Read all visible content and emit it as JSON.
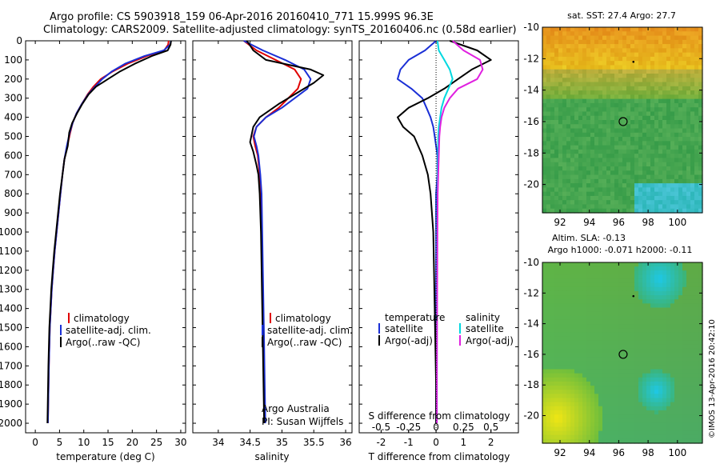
{
  "header": {
    "line1": "Argo profile: CS 5903918_159 06-Apr-2016 20160410_771 15.999S 96.3E",
    "line2": "Climatology: CARS2009. Satellite-adjusted climatology: synTS_20160406.nc (0.58d earlier)"
  },
  "colors": {
    "climatology": "#e00000",
    "satellite": "#1a2fd6",
    "argo": "#000000",
    "sal_satellite": "#00d8e0",
    "sal_argo": "#e020e0"
  },
  "depth_axis": {
    "ylim": [
      0,
      2050
    ],
    "ticks": [
      0,
      100,
      200,
      300,
      400,
      500,
      600,
      700,
      800,
      900,
      1000,
      1100,
      1200,
      1300,
      1400,
      1500,
      1600,
      1700,
      1800,
      1900,
      2000
    ]
  },
  "temp_panel": {
    "xlabel": "temperature (deg C)",
    "xlim": [
      -2,
      31
    ],
    "xticks": [
      0,
      5,
      10,
      15,
      20,
      25,
      30
    ],
    "legend": [
      "climatology",
      "satellite-adj. clim.",
      "Argo(..raw -QC)"
    ]
  },
  "sal_panel": {
    "xlabel": "salinity",
    "xlim": [
      33.6,
      36.1
    ],
    "xticks": [
      34,
      34.5,
      35,
      35.5,
      36
    ],
    "xtick_labels": [
      "34",
      "34.5",
      "35",
      "35.5",
      "36"
    ],
    "legend": [
      "climatology",
      "satellite-adj. clim.",
      "Argo(..raw -QC)"
    ],
    "note1": "Argo Australia",
    "note2": "PI: Susan Wijffels"
  },
  "diff_panel": {
    "xlabel": "T difference from climatology",
    "xlim": [
      -2.8,
      3.0
    ],
    "xticks": [
      -2,
      -1,
      0,
      1,
      2
    ],
    "s_xlabel": "S difference from climatology",
    "s_ticks": [
      -0.5,
      -0.25,
      0,
      0.25,
      0.5
    ],
    "s_tick_labels": [
      "-0.5",
      "-0.25",
      "0",
      "0.25",
      "0.5"
    ],
    "legend_temp_title": "temperature",
    "legend_sal_title": "salinity",
    "legend_temp": [
      "satellite",
      "Argo(-adj)"
    ],
    "legend_sal": [
      "satellite",
      "Argo(-adj)"
    ]
  },
  "maps": {
    "sst_title": "sat. SST: 27.4 Argo: 27.7",
    "sla_title1": "Altim. SLA: -0.13",
    "sla_title2": "Argo h1000: -0.071 h2000: -0.11",
    "lat_ticks": [
      -10,
      -12,
      -14,
      -16,
      -18,
      -20
    ],
    "lon_ticks": [
      92,
      94,
      96,
      98,
      100
    ],
    "xlim": [
      90.8,
      101.7
    ],
    "ylim": [
      -21.8,
      -10
    ],
    "float_pos": [
      96.3,
      -16.0
    ],
    "credit": "©IMOS 13-Apr-2016 20:42:10"
  },
  "chart_data": [
    {
      "type": "line",
      "title": "",
      "xlabel": "temperature (deg C)",
      "ylabel": "",
      "series": [
        {
          "name": "climatology",
          "x": [
            27.5,
            27.4,
            26.6,
            23,
            19,
            16,
            13.5,
            12,
            10.8,
            9.6,
            8.5,
            7.7,
            7.2,
            6.6,
            6.0,
            5.6,
            5.2,
            4.8,
            4.4,
            4.0,
            3.7,
            3.4,
            3.2,
            3.0,
            2.8,
            2.6
          ],
          "y": [
            0,
            20,
            50,
            80,
            120,
            160,
            200,
            240,
            280,
            330,
            380,
            430,
            480,
            550,
            620,
            700,
            800,
            900,
            1000,
            1100,
            1200,
            1300,
            1400,
            1500,
            1700,
            2000
          ]
        },
        {
          "name": "satellite-adj. clim.",
          "x": [
            28,
            27.8,
            26.5,
            22.5,
            18.5,
            15.8,
            13.8,
            12.3,
            10.9,
            9.6,
            8.5,
            7.7,
            7.1,
            6.5,
            6.0,
            5.6,
            5.2,
            4.8,
            4.4,
            4.0,
            3.7,
            3.4,
            3.2,
            3.0,
            2.8,
            2.6
          ],
          "y": [
            0,
            20,
            50,
            80,
            120,
            160,
            200,
            240,
            280,
            330,
            380,
            430,
            480,
            550,
            620,
            700,
            800,
            900,
            1000,
            1100,
            1200,
            1300,
            1400,
            1500,
            1700,
            2000
          ]
        },
        {
          "name": "Argo(..raw -QC)",
          "x": [
            28,
            27.9,
            27.3,
            24,
            20.5,
            17.5,
            15,
            12.5,
            11,
            9.7,
            8.6,
            7.6,
            7.0,
            6.7,
            6.0,
            5.6,
            5.1,
            4.7,
            4.3,
            3.9,
            3.6,
            3.3,
            3.1,
            2.9,
            2.7,
            2.5
          ],
          "y": [
            0,
            20,
            50,
            80,
            120,
            160,
            200,
            240,
            280,
            330,
            380,
            430,
            480,
            550,
            620,
            700,
            800,
            900,
            1000,
            1100,
            1200,
            1300,
            1400,
            1500,
            1700,
            2000
          ]
        }
      ]
    },
    {
      "type": "line",
      "title": "",
      "xlabel": "salinity",
      "ylabel": "",
      "series": [
        {
          "name": "climatology",
          "x": [
            34.4,
            34.6,
            34.9,
            35.2,
            35.3,
            35.25,
            35.1,
            34.95,
            34.75,
            34.6,
            34.55,
            34.58,
            34.62,
            34.65,
            34.67,
            34.68,
            34.69,
            34.7,
            34.71,
            34.72,
            34.73
          ],
          "y": [
            0,
            50,
            100,
            150,
            200,
            250,
            300,
            350,
            400,
            450,
            500,
            550,
            600,
            700,
            800,
            1000,
            1200,
            1400,
            1600,
            1800,
            2000
          ]
        },
        {
          "name": "satellite-adj. clim.",
          "x": [
            34.4,
            34.7,
            35.05,
            35.35,
            35.45,
            35.4,
            35.2,
            35.0,
            34.75,
            34.6,
            34.56,
            34.6,
            34.63,
            34.66,
            34.68,
            34.69,
            34.7,
            34.71,
            34.72,
            34.73,
            34.74
          ],
          "y": [
            0,
            50,
            100,
            150,
            200,
            250,
            300,
            350,
            400,
            450,
            500,
            550,
            600,
            700,
            800,
            1000,
            1200,
            1400,
            1600,
            1800,
            2000
          ]
        },
        {
          "name": "Argo(..raw -QC)",
          "x": [
            34.45,
            34.55,
            34.75,
            35.45,
            35.65,
            35.5,
            35.3,
            34.95,
            34.65,
            34.55,
            34.5,
            34.55,
            34.6,
            34.63,
            34.65,
            34.67,
            34.68,
            34.69,
            34.7,
            34.71,
            34.72
          ],
          "y": [
            0,
            50,
            100,
            150,
            180,
            220,
            260,
            330,
            400,
            450,
            530,
            580,
            650,
            700,
            800,
            1000,
            1200,
            1400,
            1600,
            1800,
            2000
          ]
        }
      ]
    },
    {
      "type": "line",
      "title": "",
      "xlabel": "T difference from climatology",
      "ylabel": "",
      "series": [
        {
          "name": "temperature satellite",
          "x": [
            0.0,
            -0.4,
            -1.0,
            -1.3,
            -1.4,
            -0.9,
            -0.5,
            -0.35,
            -0.2,
            -0.1,
            -0.05,
            0.05,
            0.05,
            0.0,
            0.0,
            0.0,
            0.0,
            0.0
          ],
          "y": [
            0,
            50,
            100,
            150,
            200,
            250,
            300,
            350,
            400,
            450,
            500,
            600,
            700,
            800,
            1000,
            1400,
            1800,
            2000
          ]
        },
        {
          "name": "temperature Argo(-adj)",
          "x": [
            0.5,
            1.5,
            2.0,
            1.3,
            0.8,
            0.3,
            -0.3,
            -1.0,
            -1.4,
            -1.2,
            -0.8,
            -0.5,
            -0.3,
            -0.2,
            -0.1,
            -0.05,
            0.0,
            0.0
          ],
          "y": [
            0,
            50,
            100,
            150,
            200,
            250,
            300,
            350,
            400,
            450,
            500,
            600,
            700,
            800,
            1000,
            1400,
            1800,
            2000
          ]
        },
        {
          "name": "salinity satellite",
          "x": [
            0.05,
            0.1,
            0.3,
            0.5,
            0.6,
            0.45,
            0.3,
            0.2,
            0.15,
            0.1,
            0.08,
            0.07,
            0.06,
            0.05,
            0.04,
            0.03,
            0.03,
            0.03
          ],
          "y": [
            0,
            50,
            100,
            150,
            200,
            250,
            300,
            350,
            400,
            450,
            500,
            600,
            700,
            800,
            1000,
            1400,
            1800,
            2000
          ]
        },
        {
          "name": "salinity Argo(-adj)",
          "x": [
            0.6,
            1.0,
            1.6,
            1.7,
            1.5,
            0.8,
            0.5,
            0.3,
            0.2,
            0.15,
            0.12,
            0.1,
            0.08,
            0.06,
            0.05,
            0.04,
            0.03,
            0.03
          ],
          "y": [
            0,
            50,
            100,
            150,
            200,
            250,
            300,
            350,
            400,
            450,
            500,
            600,
            700,
            800,
            1000,
            1400,
            1800,
            2000
          ]
        }
      ]
    }
  ]
}
